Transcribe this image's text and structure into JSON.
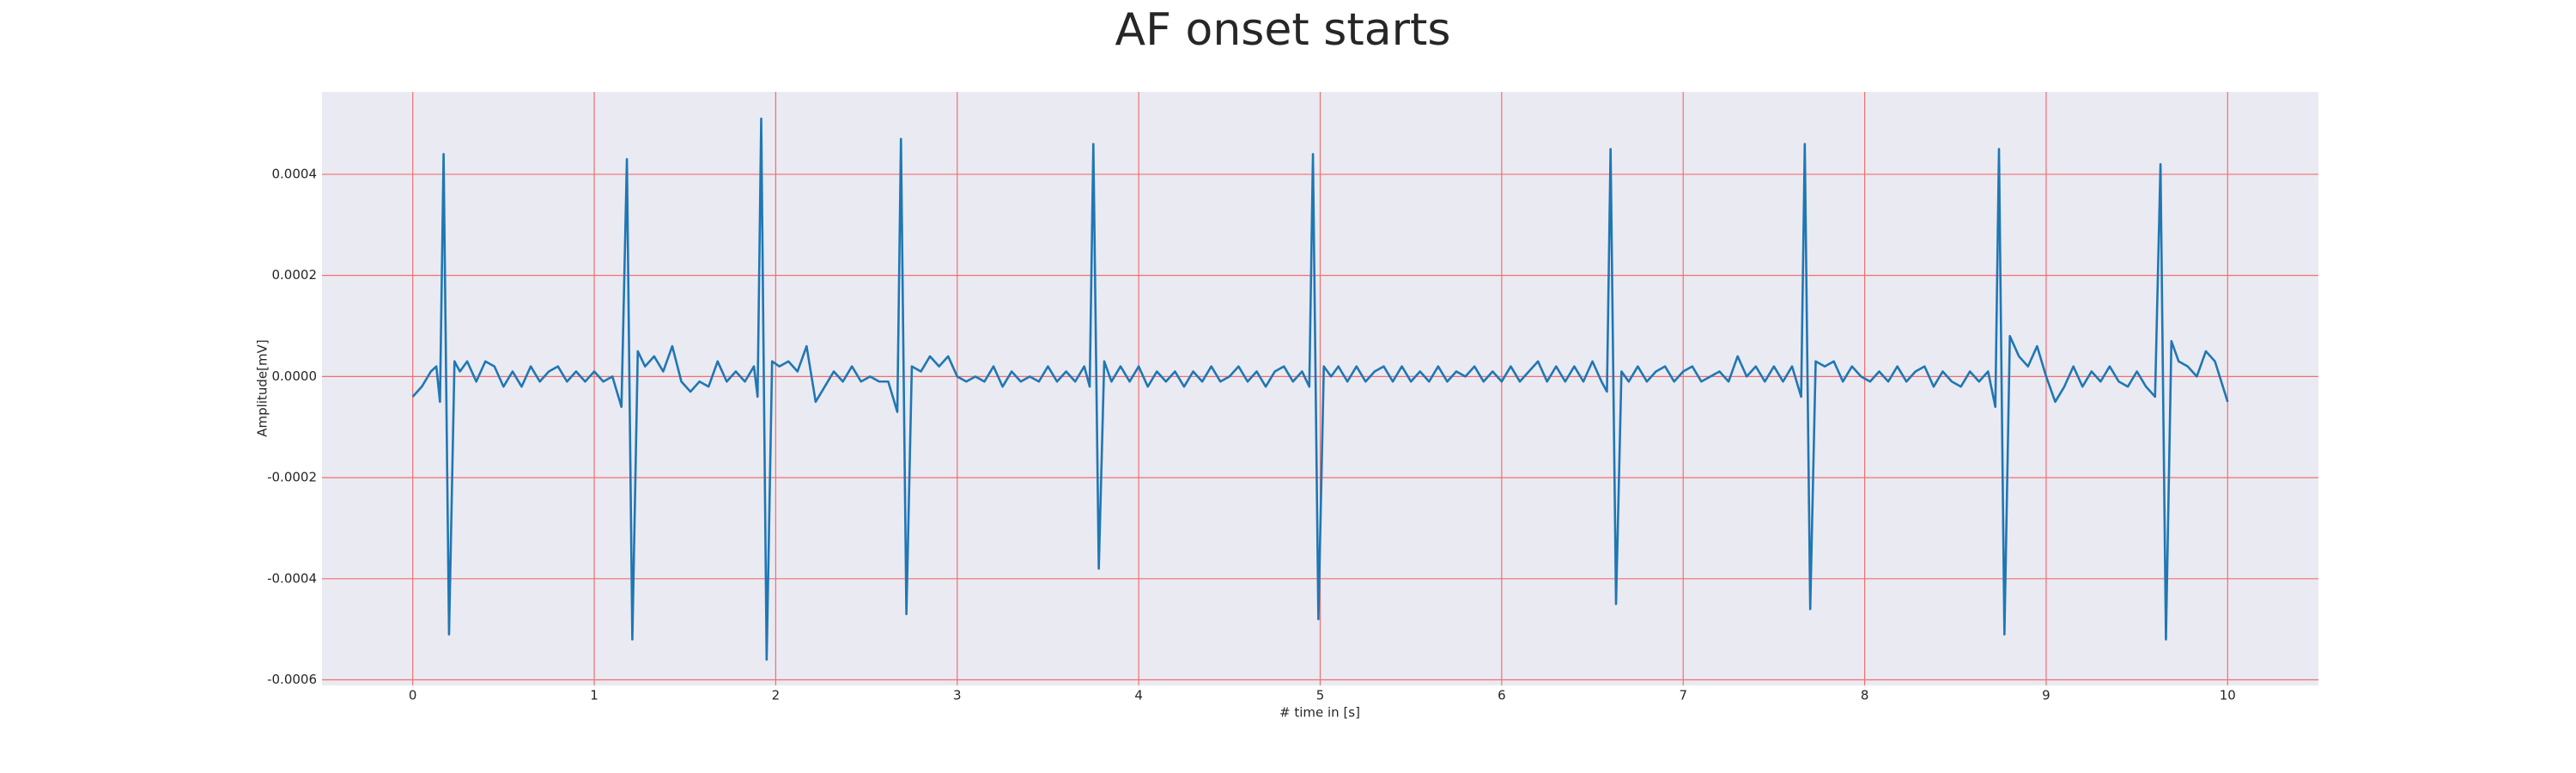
{
  "chart_data": {
    "type": "line",
    "title": "AF onset starts",
    "x_label": "# time in [s]",
    "y_label": "Amplitude[mV]",
    "xlim": [
      -0.5,
      10.5
    ],
    "xticks": [
      0,
      1,
      2,
      3,
      4,
      5,
      6,
      7,
      8,
      9,
      10
    ],
    "ylim": [
      -0.000611,
      0.000563
    ],
    "yticks": [
      -0.0006,
      -0.0004,
      -0.0002,
      {
        "value": 0,
        "label": "0.0000"
      },
      0.0002,
      0.0004
    ],
    "grid": true,
    "grid_color": "#f07070",
    "background": "#eaeaf2",
    "x": [
      0,
      0.05,
      0.1,
      0.13,
      0.15,
      0.17,
      0.2,
      0.23,
      0.26,
      0.3,
      0.35,
      0.4,
      0.45,
      0.5,
      0.55,
      0.6,
      0.65,
      0.7,
      0.75,
      0.8,
      0.85,
      0.9,
      0.95,
      1,
      1.05,
      1.1,
      1.15,
      1.18,
      1.21,
      1.24,
      1.28,
      1.33,
      1.38,
      1.43,
      1.48,
      1.53,
      1.58,
      1.63,
      1.68,
      1.73,
      1.78,
      1.83,
      1.88,
      1.9,
      1.92,
      1.95,
      1.98,
      2.02,
      2.07,
      2.12,
      2.17,
      2.22,
      2.27,
      2.32,
      2.37,
      2.42,
      2.47,
      2.52,
      2.57,
      2.62,
      2.67,
      2.69,
      2.72,
      2.75,
      2.8,
      2.85,
      2.9,
      2.95,
      3,
      3.05,
      3.1,
      3.15,
      3.2,
      3.25,
      3.3,
      3.35,
      3.4,
      3.45,
      3.5,
      3.55,
      3.6,
      3.65,
      3.7,
      3.73,
      3.75,
      3.78,
      3.81,
      3.85,
      3.9,
      3.95,
      4,
      4.05,
      4.1,
      4.15,
      4.2,
      4.25,
      4.3,
      4.35,
      4.4,
      4.45,
      4.5,
      4.55,
      4.6,
      4.65,
      4.7,
      4.75,
      4.8,
      4.85,
      4.9,
      4.94,
      4.96,
      4.99,
      5.02,
      5.06,
      5.1,
      5.15,
      5.2,
      5.25,
      5.3,
      5.35,
      5.4,
      5.45,
      5.5,
      5.55,
      5.6,
      5.65,
      5.7,
      5.75,
      5.8,
      5.85,
      5.9,
      5.95,
      6,
      6.05,
      6.1,
      6.15,
      6.2,
      6.25,
      6.3,
      6.35,
      6.4,
      6.45,
      6.5,
      6.55,
      6.58,
      6.6,
      6.63,
      6.66,
      6.7,
      6.75,
      6.8,
      6.85,
      6.9,
      6.95,
      7,
      7.05,
      7.1,
      7.15,
      7.2,
      7.25,
      7.3,
      7.35,
      7.4,
      7.45,
      7.5,
      7.55,
      7.6,
      7.65,
      7.67,
      7.7,
      7.73,
      7.78,
      7.83,
      7.88,
      7.93,
      7.98,
      8.03,
      8.08,
      8.13,
      8.18,
      8.23,
      8.28,
      8.33,
      8.38,
      8.43,
      8.48,
      8.53,
      8.58,
      8.63,
      8.68,
      8.72,
      8.74,
      8.77,
      8.8,
      8.85,
      8.9,
      8.95,
      9,
      9.05,
      9.1,
      9.15,
      9.2,
      9.25,
      9.3,
      9.35,
      9.4,
      9.45,
      9.5,
      9.55,
      9.6,
      9.63,
      9.66,
      9.69,
      9.73,
      9.78,
      9.83,
      9.88,
      9.93,
      10
    ],
    "series": [
      {
        "color": "#1f77b4",
        "values": [
          -4e-05,
          -2e-05,
          1e-05,
          2e-05,
          -5e-05,
          0.00044,
          -0.00051,
          3e-05,
          1e-05,
          3e-05,
          -1e-05,
          3e-05,
          2e-05,
          -2e-05,
          1e-05,
          -2e-05,
          2e-05,
          -1e-05,
          1e-05,
          2e-05,
          -1e-05,
          1e-05,
          -1e-05,
          1e-05,
          -1e-05,
          0,
          -6e-05,
          0.00043,
          -0.00052,
          5e-05,
          2e-05,
          4e-05,
          1e-05,
          6e-05,
          -1e-05,
          -3e-05,
          -1e-05,
          -2e-05,
          3e-05,
          -1e-05,
          1e-05,
          -1e-05,
          2e-05,
          -4e-05,
          0.00051,
          -0.00056,
          3e-05,
          2e-05,
          3e-05,
          1e-05,
          6e-05,
          -5e-05,
          -2e-05,
          1e-05,
          -1e-05,
          2e-05,
          -1e-05,
          0,
          -1e-05,
          -1e-05,
          -7e-05,
          0.00047,
          -0.00047,
          2e-05,
          1e-05,
          4e-05,
          2e-05,
          4e-05,
          0,
          -1e-05,
          0,
          -1e-05,
          2e-05,
          -2e-05,
          1e-05,
          -1e-05,
          0,
          -1e-05,
          2e-05,
          -1e-05,
          1e-05,
          -1e-05,
          2e-05,
          -2e-05,
          0.00046,
          -0.00038,
          3e-05,
          -1e-05,
          2e-05,
          -1e-05,
          2e-05,
          -2e-05,
          1e-05,
          -1e-05,
          1e-05,
          -2e-05,
          1e-05,
          -1e-05,
          2e-05,
          -1e-05,
          0,
          2e-05,
          -1e-05,
          1e-05,
          -2e-05,
          1e-05,
          2e-05,
          -1e-05,
          1e-05,
          -2e-05,
          0.00044,
          -0.00048,
          2e-05,
          0,
          2e-05,
          -1e-05,
          2e-05,
          -1e-05,
          1e-05,
          2e-05,
          -1e-05,
          2e-05,
          -1e-05,
          1e-05,
          -1e-05,
          2e-05,
          -1e-05,
          1e-05,
          0,
          2e-05,
          -1e-05,
          1e-05,
          -1e-05,
          2e-05,
          -1e-05,
          1e-05,
          3e-05,
          -1e-05,
          2e-05,
          -1e-05,
          2e-05,
          -1e-05,
          3e-05,
          -1e-05,
          -3e-05,
          0.00045,
          -0.00045,
          1e-05,
          -1e-05,
          2e-05,
          -1e-05,
          1e-05,
          2e-05,
          -1e-05,
          1e-05,
          2e-05,
          -1e-05,
          0,
          1e-05,
          -1e-05,
          4e-05,
          0,
          2e-05,
          -1e-05,
          2e-05,
          -1e-05,
          2e-05,
          -4e-05,
          0.00046,
          -0.00046,
          3e-05,
          2e-05,
          3e-05,
          -1e-05,
          2e-05,
          0,
          -1e-05,
          1e-05,
          -1e-05,
          2e-05,
          -1e-05,
          1e-05,
          2e-05,
          -2e-05,
          1e-05,
          -1e-05,
          -2e-05,
          1e-05,
          -1e-05,
          1e-05,
          -6e-05,
          0.00045,
          -0.00051,
          8e-05,
          4e-05,
          2e-05,
          6e-05,
          0,
          -5e-05,
          -2e-05,
          2e-05,
          -2e-05,
          1e-05,
          -1e-05,
          2e-05,
          -1e-05,
          -2e-05,
          1e-05,
          -2e-05,
          -4e-05,
          0.00042,
          -0.00052,
          7e-05,
          3e-05,
          2e-05,
          0,
          5e-05,
          3e-05,
          -5e-05
        ]
      }
    ]
  }
}
